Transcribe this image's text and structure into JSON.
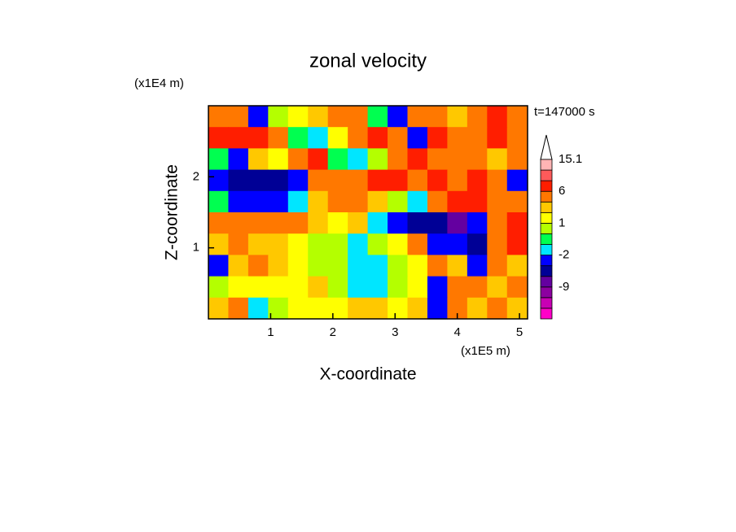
{
  "chart_data": {
    "type": "contour",
    "title": "zonal velocity",
    "x_label": "X-coordinate",
    "y_label": "Z-coordinate",
    "x_unit": "(x1E5 m)",
    "y_unit": "(x1E4 m)",
    "annotation": "t=147000 s",
    "xlim": [
      0,
      5.13
    ],
    "ylim": [
      0,
      3
    ],
    "xticks": [
      1,
      2,
      3,
      4,
      5
    ],
    "yticks": [
      1,
      2
    ],
    "x": [
      0.16,
      0.48,
      0.8,
      1.12,
      1.44,
      1.76,
      2.08,
      2.4,
      2.72,
      3.04,
      3.36,
      3.68,
      4.0,
      4.32,
      4.64,
      4.96
    ],
    "y": [
      2.85,
      2.55,
      2.25,
      1.95,
      1.65,
      1.35,
      1.05,
      0.75,
      0.45,
      0.15
    ],
    "z": [
      [
        4,
        4,
        -3,
        0.5,
        1.5,
        2.5,
        4,
        3,
        -0.5,
        -3,
        4,
        3,
        2.5,
        5,
        7,
        4
      ],
      [
        7,
        8,
        7,
        4,
        -0.5,
        -1.5,
        1.5,
        4,
        7,
        4,
        -3,
        7,
        4,
        5,
        7,
        4
      ],
      [
        -0.5,
        -3,
        2.5,
        1.5,
        4,
        7,
        -0.5,
        -1.5,
        0.5,
        4,
        7,
        5,
        5,
        4,
        2,
        4
      ],
      [
        -3,
        -5,
        -5,
        -5,
        -3,
        4,
        4,
        5,
        7,
        8,
        5,
        7,
        4,
        7,
        4,
        -3
      ],
      [
        -0.5,
        -3,
        -4,
        -3,
        -1.5,
        2,
        4,
        4,
        2,
        0.5,
        -1.5,
        4,
        7,
        6.5,
        4,
        4
      ],
      [
        4,
        5,
        5,
        4,
        4,
        2,
        1.5,
        2,
        -1.5,
        -3,
        -5,
        -5,
        -7,
        -4,
        4,
        7
      ],
      [
        2.5,
        3.5,
        2.5,
        2,
        1.5,
        0,
        0.5,
        -1.5,
        0,
        1.5,
        4,
        -3,
        -4,
        -5,
        4,
        6.5
      ],
      [
        -3,
        2.5,
        3.5,
        2,
        1.5,
        0.5,
        0,
        -1.5,
        -1.5,
        0,
        1.5,
        3.5,
        2,
        -4,
        4,
        2
      ],
      [
        0,
        1.5,
        1.5,
        1.5,
        1.5,
        2,
        0.5,
        -1.5,
        -1.5,
        0.5,
        1.5,
        -3,
        4,
        3.5,
        2,
        4
      ],
      [
        2,
        3.5,
        -1.5,
        0,
        1.5,
        1.5,
        1.5,
        2,
        2,
        1.5,
        2,
        -3,
        4,
        2,
        4,
        2
      ]
    ],
    "colorbar": {
      "levels": [
        -18,
        -15,
        -12,
        -9,
        -6,
        -4,
        -2,
        -1,
        0,
        1,
        2,
        3,
        6,
        9,
        12,
        15.1
      ],
      "colors": [
        "#ff00c8",
        "#c800b4",
        "#8c00a0",
        "#6400a0",
        "#000096",
        "#0000ff",
        "#00e6ff",
        "#00ff50",
        "#b4ff00",
        "#ffff00",
        "#ffc800",
        "#ff7800",
        "#ff1e00",
        "#ff5a5a",
        "#ffb4b4"
      ],
      "ticks": [
        15.1,
        6,
        1,
        -2,
        -9
      ]
    }
  }
}
